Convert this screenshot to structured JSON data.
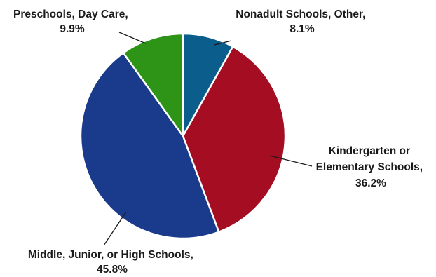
{
  "chart_data": {
    "type": "pie",
    "title": "",
    "slices": [
      {
        "label": "Nonadult Schools, Other",
        "value": 8.1,
        "value_label": "8.1%",
        "color": "#0b5d8c"
      },
      {
        "label": "Kindergarten or Elementary Schools",
        "value": 36.2,
        "value_label": "36.2%",
        "color": "#a50d23"
      },
      {
        "label": "Middle, Junior, or High Schools",
        "value": 45.8,
        "value_label": "45.8%",
        "color": "#1a3a8c"
      },
      {
        "label": "Preschools, Day Care",
        "value": 9.9,
        "value_label": "9.9%",
        "color": "#2e9418"
      }
    ],
    "start_angle_deg": 0,
    "direction": "clockwise",
    "legend": "none"
  },
  "labels": {
    "nonadult": {
      "line1": "Nonadult Schools, Other,",
      "line2": "8.1%"
    },
    "kindergarten": {
      "line1": "Kindergarten or",
      "line2": "Elementary Schools,",
      "line3": "36.2%"
    },
    "middle": {
      "line1": "Middle, Junior, or High Schools,",
      "line2": "45.8%"
    },
    "preschool": {
      "line1": "Preschools, Day Care,",
      "line2": "9.9%"
    }
  }
}
